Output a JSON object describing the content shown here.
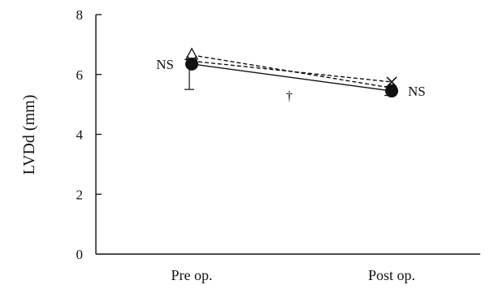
{
  "chart_data": {
    "type": "line",
    "ylabel": "LVDd (mm)",
    "xlabel": "",
    "title": "",
    "ylim": [
      0,
      8
    ],
    "yticks": [
      0,
      2,
      4,
      6,
      8
    ],
    "categories": [
      "Pre op.",
      "Post op."
    ],
    "grid": false,
    "series": [
      {
        "marker": "triangle",
        "line_style": "dashed",
        "values": [
          6.65,
          5.55
        ]
      },
      {
        "marker": "cross",
        "line_style": "dashed",
        "values": [
          6.45,
          5.75
        ]
      },
      {
        "marker": "filled-circle",
        "line_style": "solid",
        "values": [
          6.35,
          5.45
        ],
        "error_low": [
          5.5,
          5.3
        ],
        "error_high": [
          6.5,
          5.6
        ]
      }
    ],
    "annotations": [
      {
        "text": "NS",
        "near": "Pre op.",
        "value": 6.35,
        "side": "left"
      },
      {
        "text": "NS",
        "near": "Post op.",
        "value": 5.45,
        "side": "right"
      },
      {
        "text": "†",
        "between": [
          "Pre op.",
          "Post op."
        ],
        "value": 5.3
      }
    ]
  }
}
